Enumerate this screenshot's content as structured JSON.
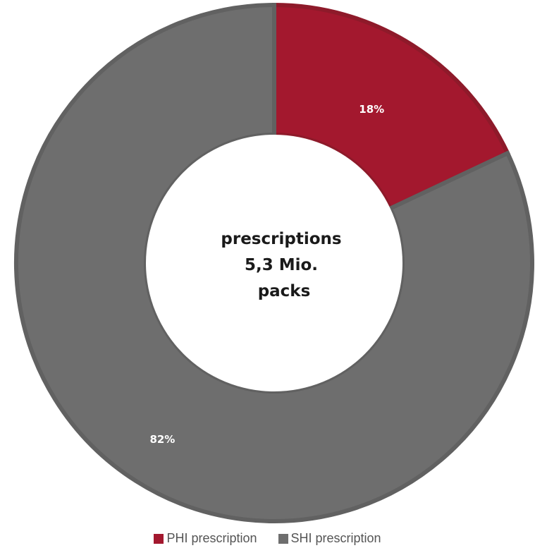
{
  "chart_data": {
    "type": "pie",
    "variant": "donut",
    "categories": [
      "PHI prescription",
      "SHI prescription"
    ],
    "values": [
      18,
      82
    ],
    "value_labels": [
      "18%",
      "82%"
    ],
    "colors": [
      "#a3182e",
      "#6e6e6e"
    ],
    "border_colors": [
      "#8e1a2a",
      "#616161"
    ],
    "center_text": [
      "prescriptions",
      "5,3 Mio.",
      "packs"
    ],
    "legend": {
      "position": "bottom",
      "entries": [
        "PHI prescription",
        "SHI prescription"
      ]
    }
  }
}
